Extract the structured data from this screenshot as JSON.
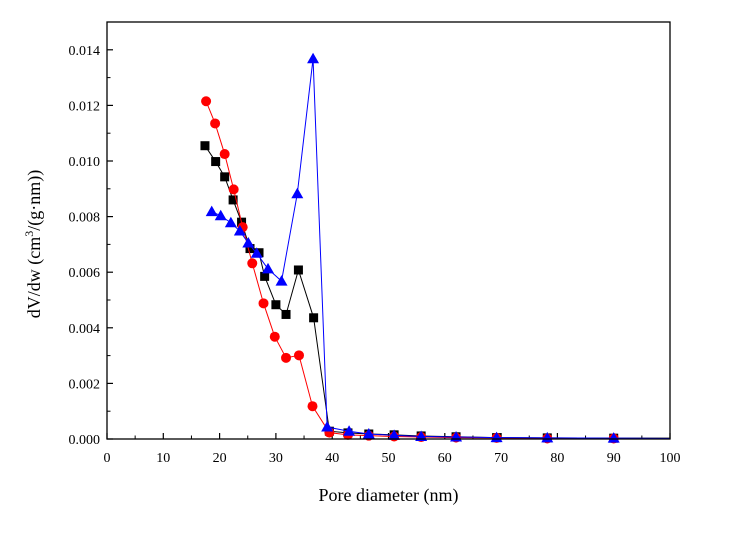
{
  "chart_data": {
    "type": "scatter",
    "title": "",
    "xlabel": "Pore diameter (nm)",
    "ylabel": "dV/dw (cm3/(g·nm))",
    "ylabel_parts": {
      "prefix": "dV/dw (cm",
      "superscript": "3",
      "suffix": "/(g·nm))"
    },
    "xlim": [
      0,
      100
    ],
    "ylim": [
      0,
      0.015
    ],
    "xticks": [
      "0",
      "10",
      "20",
      "30",
      "40",
      "50",
      "60",
      "70",
      "80",
      "90",
      "100"
    ],
    "yticks": [
      "0.000",
      "0.002",
      "0.004",
      "0.006",
      "0.008",
      "0.010",
      "0.012",
      "0.014"
    ],
    "series": [
      {
        "name": "square series",
        "color": "#000000",
        "marker": "square",
        "x": [
          17.4,
          19.3,
          20.9,
          22.4,
          23.9,
          25.4,
          27.0,
          28.0,
          30.0,
          31.8,
          34.0,
          36.7,
          39.5,
          42.8,
          46.5,
          51.0,
          55.8,
          62.0,
          69.2,
          78.2,
          90.0,
          100
        ],
        "y": [
          0.01055,
          0.00998,
          0.00943,
          0.0086,
          0.0078,
          0.00685,
          0.0067,
          0.00585,
          0.00483,
          0.00448,
          0.00608,
          0.00436,
          0.00028,
          0.00022,
          0.00018,
          0.00015,
          0.00011,
          8e-05,
          5e-05,
          4e-05,
          3e-05,
          3e-05
        ]
      },
      {
        "name": "circle series",
        "color": "#ff0000",
        "marker": "circle",
        "x": [
          17.6,
          19.2,
          20.9,
          22.5,
          24.1,
          25.8,
          27.8,
          29.8,
          31.8,
          34.1,
          36.5,
          39.5,
          42.8,
          46.5,
          51.0,
          55.8,
          62.0,
          69.2,
          78.2,
          90.0,
          100
        ],
        "y": [
          0.01215,
          0.01135,
          0.01025,
          0.00898,
          0.00762,
          0.00632,
          0.00488,
          0.00368,
          0.00292,
          0.00301,
          0.00118,
          0.00023,
          0.00015,
          0.00012,
          9e-05,
          7e-05,
          5e-05,
          4e-05,
          2e-05,
          2e-05,
          2e-05
        ]
      },
      {
        "name": "triangle series",
        "color": "#0000ff",
        "marker": "triangle",
        "x": [
          18.6,
          20.2,
          22.0,
          23.6,
          25.1,
          26.6,
          28.6,
          31.0,
          33.8,
          36.6,
          39.1,
          43.0,
          46.5,
          51.0,
          55.8,
          62.0,
          69.2,
          78.2,
          90.0,
          100
        ],
        "y": [
          0.00818,
          0.00803,
          0.00778,
          0.00748,
          0.00705,
          0.00668,
          0.00612,
          0.00568,
          0.00882,
          0.01368,
          0.00043,
          0.00028,
          0.00018,
          0.00013,
          9e-05,
          7e-05,
          5e-05,
          4e-05,
          3e-05,
          2e-05
        ]
      }
    ]
  }
}
